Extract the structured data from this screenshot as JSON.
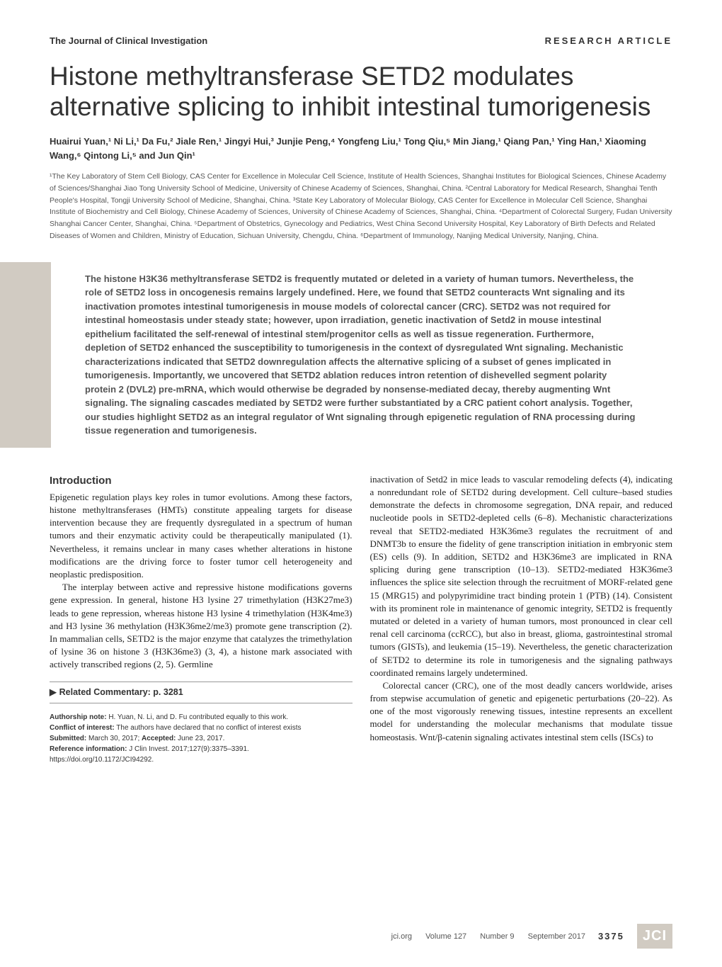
{
  "header": {
    "journal": "The Journal of Clinical Investigation",
    "article_type": "RESEARCH ARTICLE"
  },
  "title": "Histone methyltransferase SETD2 modulates alternative splicing to inhibit intestinal tumorigenesis",
  "authors": "Huairui Yuan,¹ Ni Li,¹ Da Fu,² Jiale Ren,¹ Jingyi Hui,³ Junjie Peng,⁴ Yongfeng Liu,¹ Tong Qiu,⁵ Min Jiang,¹ Qiang Pan,¹ Ying Han,¹ Xiaoming Wang,⁶ Qintong Li,⁵ and Jun Qin¹",
  "affiliations": "¹The Key Laboratory of Stem Cell Biology, CAS Center for Excellence in Molecular Cell Science, Institute of Health Sciences, Shanghai Institutes for Biological Sciences, Chinese Academy of Sciences/Shanghai Jiao Tong University School of Medicine, University of Chinese Academy of Sciences, Shanghai, China. ²Central Laboratory for Medical Research, Shanghai Tenth People's Hospital, Tongji University School of Medicine, Shanghai, China. ³State Key Laboratory of Molecular Biology, CAS Center for Excellence in Molecular Cell Science, Shanghai Institute of Biochemistry and Cell Biology, Chinese Academy of Sciences, University of Chinese Academy of Sciences, Shanghai, China. ⁴Department of Colorectal Surgery, Fudan University Shanghai Cancer Center, Shanghai, China. ⁵Department of Obstetrics, Gynecology and Pediatrics, West China Second University Hospital, Key Laboratory of Birth Defects and Related Diseases of Women and Children, Ministry of Education, Sichuan University, Chengdu, China. ⁶Department of Immunology, Nanjing Medical University, Nanjing, China.",
  "abstract": "The histone H3K36 methyltransferase SETD2 is frequently mutated or deleted in a variety of human tumors. Nevertheless, the role of SETD2 loss in oncogenesis remains largely undefined. Here, we found that SETD2 counteracts Wnt signaling and its inactivation promotes intestinal tumorigenesis in mouse models of colorectal cancer (CRC). SETD2 was not required for intestinal homeostasis under steady state; however, upon irradiation, genetic inactivation of Setd2 in mouse intestinal epithelium facilitated the self-renewal of intestinal stem/progenitor cells as well as tissue regeneration. Furthermore, depletion of SETD2 enhanced the susceptibility to tumorigenesis in the context of dysregulated Wnt signaling. Mechanistic characterizations indicated that SETD2 downregulation affects the alternative splicing of a subset of genes implicated in tumorigenesis. Importantly, we uncovered that SETD2 ablation reduces intron retention of dishevelled segment polarity protein 2 (DVL2) pre-mRNA, which would otherwise be degraded by nonsense-mediated decay, thereby augmenting Wnt signaling. The signaling cascades mediated by SETD2 were further substantiated by a CRC patient cohort analysis. Together, our studies highlight SETD2 as an integral regulator of Wnt signaling through epigenetic regulation of RNA processing during tissue regeneration and tumorigenesis.",
  "section_heading": "Introduction",
  "left_col": {
    "p1": "Epigenetic regulation plays key roles in tumor evolutions. Among these factors, histone methyltransferases (HMTs) constitute appealing targets for disease intervention because they are frequently dysregulated in a spectrum of human tumors and their enzymatic activity could be therapeutically manipulated (1). Nevertheless, it remains unclear in many cases whether alterations in histone modifications are the driving force to foster tumor cell heterogeneity and neoplastic predisposition.",
    "p2": "The interplay between active and repressive histone modifications governs gene expression. In general, histone H3 lysine 27 trimethylation (H3K27me3) leads to gene repression, whereas histone H3 lysine 4 trimethylation (H3K4me3) and H3 lysine 36 methylation (H3K36me2/me3) promote gene transcription (2). In mammalian cells, SETD2 is the major enzyme that catalyzes the trimethylation of lysine 36 on histone 3 (H3K36me3) (3, 4), a histone mark associated with actively transcribed regions (2, 5). Germline"
  },
  "right_col": {
    "p1": "inactivation of Setd2 in mice leads to vascular remodeling defects (4), indicating a nonredundant role of SETD2 during development. Cell culture–based studies demonstrate the defects in chromosome segregation, DNA repair, and reduced nucleotide pools in SETD2-depleted cells (6–8). Mechanistic characterizations reveal that SETD2-mediated H3K36me3 regulates the recruitment of and DNMT3b to ensure the fidelity of gene transcription initiation in embryonic stem (ES) cells (9). In addition, SETD2 and H3K36me3 are implicated in RNA splicing during gene transcription (10–13). SETD2-mediated H3K36me3 influences the splice site selection through the recruitment of MORF-related gene 15 (MRG15) and polypyrimidine tract binding protein 1 (PTB) (14). Consistent with its prominent role in maintenance of genomic integrity, SETD2 is frequently mutated or deleted in a variety of human tumors, most pronounced in clear cell renal cell carcinoma (ccRCC), but also in breast, glioma, gastrointestinal stromal tumors (GISTs), and leukemia (15–19). Nevertheless, the genetic characterization of SETD2 to determine its role in tumorigenesis and the signaling pathways coordinated remains largely undetermined.",
    "p2": "Colorectal cancer (CRC), one of the most deadly cancers worldwide, arises from stepwise accumulation of genetic and epigenetic perturbations (20–22). As one of the most vigorously renewing tissues, intestine represents an excellent model for understanding the molecular mechanisms that modulate tissue homeostasis. Wnt/β-catenin signaling activates intestinal stem cells (ISCs) to"
  },
  "commentary": "Related Commentary: p. 3281",
  "meta": {
    "authorship_label": "Authorship note:",
    "authorship": " H. Yuan, N. Li, and D. Fu contributed equally to this work.",
    "conflict_label": "Conflict of interest:",
    "conflict": " The authors have declared that no conflict of interest exists",
    "submitted_label": "Submitted:",
    "submitted": " March 30, 2017; ",
    "accepted_label": "Accepted:",
    "accepted": " June 23, 2017.",
    "ref_label": "Reference information:",
    "ref": " J Clin Invest. 2017;127(9):3375–3391.",
    "doi": "https://doi.org/10.1172/JCI94292."
  },
  "footer": {
    "site": "jci.org",
    "volume": "Volume 127",
    "number": "Number 9",
    "date": "September 2017",
    "page": "3375",
    "logo": "JCI"
  },
  "colors": {
    "abstract_bar": "#d1cbc2",
    "logo_bg": "#d1cbc2",
    "text": "#222222",
    "heading": "#333333"
  }
}
